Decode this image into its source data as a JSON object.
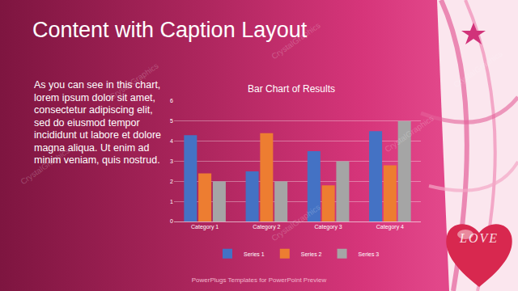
{
  "slide": {
    "title": "Content with Caption Layout",
    "caption": "As you can see in this chart, lorem ipsum dolor sit amet, consectetur adipiscing elit, sed do eiusmod tempor incididunt ut labore et dolore magna aliqua. Ut enim ad minim veniam, quis nostrud.",
    "footer": "PowerPlugs Templates for PowerPoint Preview",
    "watermark": "CrystalGraphics",
    "badge": "LOVE"
  },
  "chart_data": {
    "type": "bar",
    "title": "Bar Chart of Results",
    "categories": [
      "Category 1",
      "Category 2",
      "Category 3",
      "Category 4"
    ],
    "series": [
      {
        "name": "Series 1",
        "color": "#4472c4",
        "values": [
          4.3,
          2.5,
          3.5,
          4.5
        ]
      },
      {
        "name": "Series 2",
        "color": "#ed7d31",
        "values": [
          2.4,
          4.4,
          1.8,
          2.8
        ]
      },
      {
        "name": "Series 3",
        "color": "#a5a5a5",
        "values": [
          2.0,
          2.0,
          3.0,
          5.0
        ]
      }
    ],
    "ylim": [
      0,
      6
    ],
    "yticks": [
      0,
      1,
      2,
      3,
      4,
      5,
      6
    ],
    "grid": true,
    "legend": "bottom",
    "stacked": false
  }
}
